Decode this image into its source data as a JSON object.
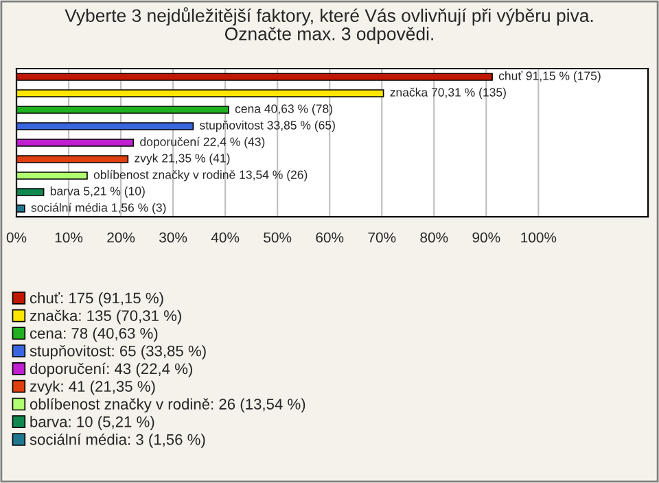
{
  "chart_data": {
    "type": "bar",
    "orientation": "horizontal",
    "title": "Vyberte 3 nejdůležitější faktory, které Vás ovlivňují při výběru piva.\nOznačte max. 3 odpovědi.",
    "categories": [
      null,
      null,
      null,
      null,
      null,
      null,
      null,
      null,
      null
    ],
    "series": [
      {
        "name": "chuť: 175 (91,15 %)",
        "color": "#c01800",
        "values": [
          91.15,
          null,
          null,
          null,
          null,
          null,
          null,
          null,
          null
        ],
        "value_labels": [
          "chuť 91,15 % (175)",
          null,
          null,
          null,
          null,
          null,
          null,
          null,
          null
        ]
      },
      {
        "name": "značka: 135 (70,31 %)",
        "color": "#ffe600",
        "values": [
          null,
          70.31,
          null,
          null,
          null,
          null,
          null,
          null,
          null
        ],
        "value_labels": [
          null,
          "značka 70,31 % (135)",
          null,
          null,
          null,
          null,
          null,
          null,
          null
        ]
      },
      {
        "name": "cena: 78 (40,63 %)",
        "color": "#20b020",
        "values": [
          null,
          null,
          40.63,
          null,
          null,
          null,
          null,
          null,
          null
        ],
        "value_labels": [
          null,
          null,
          "cena 40,63 % (78)",
          null,
          null,
          null,
          null,
          null,
          null
        ]
      },
      {
        "name": "stupňovitost: 65 (33,85 %)",
        "color": "#3a66e0",
        "values": [
          null,
          null,
          null,
          33.85,
          null,
          null,
          null,
          null,
          null
        ],
        "value_labels": [
          null,
          null,
          null,
          "stupňovitost 33,85 % (65)",
          null,
          null,
          null,
          null,
          null
        ]
      },
      {
        "name": "doporučení: 43 (22,4 %)",
        "color": "#c020d0",
        "values": [
          null,
          null,
          null,
          null,
          22.4,
          null,
          null,
          null,
          null
        ],
        "value_labels": [
          null,
          null,
          null,
          null,
          "doporučení 22,4 % (43)",
          null,
          null,
          null,
          null
        ]
      },
      {
        "name": "zvyk: 41 (21,35 %)",
        "color": "#e04010",
        "values": [
          null,
          null,
          null,
          null,
          null,
          21.35,
          null,
          null,
          null
        ],
        "value_labels": [
          null,
          null,
          null,
          null,
          null,
          "zvyk 21,35 % (41)",
          null,
          null,
          null
        ]
      },
      {
        "name": "oblíbenost značky v rodině: 26 (13,54 %)",
        "color": "#b0ff70",
        "values": [
          null,
          null,
          null,
          null,
          null,
          null,
          13.54,
          null,
          null
        ],
        "value_labels": [
          null,
          null,
          null,
          null,
          null,
          null,
          "oblíbenost značky v rodině 13,54 % (26)",
          null,
          null
        ]
      },
      {
        "name": "barva: 10 (5,21 %)",
        "color": "#108850",
        "values": [
          null,
          null,
          null,
          null,
          null,
          null,
          null,
          5.21,
          null
        ],
        "value_labels": [
          null,
          null,
          null,
          null,
          null,
          null,
          null,
          "barva 5,21 % (10)",
          null
        ]
      },
      {
        "name": "sociální média: 3 (1,56 %)",
        "color": "#207890",
        "values": [
          null,
          null,
          null,
          null,
          null,
          null,
          null,
          null,
          1.56
        ],
        "value_labels": [
          null,
          null,
          null,
          null,
          null,
          null,
          null,
          null,
          "sociální média 1,56 % (3)"
        ]
      }
    ],
    "xlim": [
      0,
      121
    ],
    "xticks": [
      {
        "value": 0,
        "label": "0%"
      },
      {
        "value": 10,
        "label": "10%"
      },
      {
        "value": 20,
        "label": "20%"
      },
      {
        "value": 30,
        "label": "30%"
      },
      {
        "value": 40,
        "label": "40%"
      },
      {
        "value": 50,
        "label": "50%"
      },
      {
        "value": 60,
        "label": "60%"
      },
      {
        "value": 70,
        "label": "70%"
      },
      {
        "value": 80,
        "label": "80%"
      },
      {
        "value": 90,
        "label": "90%"
      },
      {
        "value": 100,
        "label": "100%"
      }
    ],
    "grid": "x",
    "legend": "bottom",
    "tick_labels": "x"
  }
}
